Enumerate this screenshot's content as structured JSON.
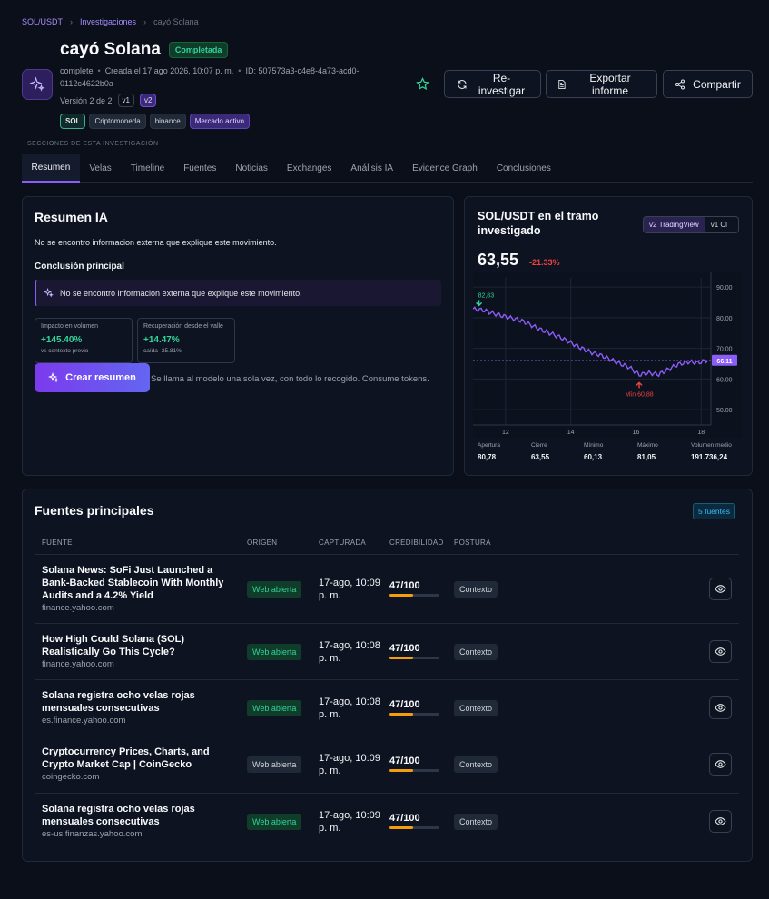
{
  "breadcrumb": {
    "root": "SOL/USDT",
    "section": "Investigaciones",
    "current": "cayó Solana"
  },
  "header": {
    "title": "cayó Solana",
    "status": "Completada",
    "meta_state": "complete",
    "meta_created": "Creada el 17 ago 2026, 10:07 p. m.",
    "meta_id": "ID: 507573a3-c4e8-4a73-acd0-0112c4622b0a",
    "version_label": "Versión 2 de 2",
    "versions": [
      "v1",
      "v2"
    ],
    "tags": [
      "SOL",
      "Criptomoneda",
      "binance",
      "Mercado activo"
    ],
    "actions": {
      "reinvestigate": "Re-investigar",
      "export": "Exportar informe",
      "share": "Compartir"
    }
  },
  "sections_label": "SECCIONES DE ESTA INVESTIGACIÓN",
  "tabs": [
    "Resumen",
    "Velas",
    "Timeline",
    "Fuentes",
    "Noticias",
    "Exchanges",
    "Análisis IA",
    "Evidence Graph",
    "Conclusiones"
  ],
  "summary": {
    "title": "Resumen IA",
    "text": "No se encontro informacion externa que explique este movimiento.",
    "conclusion_label": "Conclusión principal",
    "conclusion": "No se encontro informacion externa que explique este movimiento.",
    "stats": [
      {
        "label": "Impacto en volumen",
        "value": "+145.40%",
        "sub": "vs contexto previo"
      },
      {
        "label": "Recuperación desde el valle",
        "value": "+14.47%",
        "sub": "caída -25.81%"
      }
    ],
    "create_button": "Crear resumen",
    "create_note": "Se llama al modelo una sola vez, con todo lo recogido. Consume tokens."
  },
  "chart_panel": {
    "title": "SOL/USDT en el tramo investigado",
    "toggle": [
      {
        "tag": "v2",
        "label": "TradingView"
      },
      {
        "tag": "v1",
        "label": "Cl"
      }
    ],
    "price": "63,55",
    "change": "-21.33%",
    "stats": [
      {
        "label": "Apertura",
        "value": "80,78"
      },
      {
        "label": "Cierre",
        "value": "63,55"
      },
      {
        "label": "Mínimo",
        "value": "60,13"
      },
      {
        "label": "Máximo",
        "value": "81,05"
      },
      {
        "label": "Volumen medio",
        "value": "191.736,24"
      }
    ]
  },
  "chart_data": {
    "type": "line",
    "x_ticks": [
      "12",
      "14",
      "16",
      "18"
    ],
    "y_ticks": [
      "90.00",
      "80.00",
      "70.00",
      "60.00",
      "50.00"
    ],
    "ylim": [
      45,
      93
    ],
    "xlim": [
      11,
      18.3
    ],
    "max_marker": {
      "x": 11.1,
      "y": 82.83,
      "label": "82,83"
    },
    "min_marker": {
      "x": 16.1,
      "y": 60.88,
      "label": "Mín 60,88"
    },
    "last_value": {
      "y": 66.11,
      "label": "66.11"
    },
    "points": [
      [
        11,
        82.8
      ],
      [
        11.3,
        82.5
      ],
      [
        11.6,
        81.5
      ],
      [
        11.9,
        80.6
      ],
      [
        12.2,
        79.8
      ],
      [
        12.5,
        79.0
      ],
      [
        12.8,
        77.5
      ],
      [
        13.1,
        76.0
      ],
      [
        13.4,
        74.8
      ],
      [
        13.7,
        73.5
      ],
      [
        14.0,
        71.8
      ],
      [
        14.3,
        70.2
      ],
      [
        14.6,
        68.8
      ],
      [
        14.9,
        67.8
      ],
      [
        15.2,
        66.5
      ],
      [
        15.5,
        65.0
      ],
      [
        15.8,
        63.8
      ],
      [
        16.1,
        61.4
      ],
      [
        16.4,
        62.0
      ],
      [
        16.7,
        61.5
      ],
      [
        17.0,
        63.2
      ],
      [
        17.3,
        64.8
      ],
      [
        17.6,
        65.6
      ],
      [
        17.9,
        65.3
      ],
      [
        18.2,
        66.1
      ]
    ]
  },
  "sources": {
    "title": "Fuentes principales",
    "count": "5 fuentes",
    "columns": [
      "FUENTE",
      "ORIGEN",
      "CAPTURADA",
      "CREDIBILIDAD",
      "POSTURA"
    ],
    "rows": [
      {
        "title": "Solana News: SoFi Just Launched a Bank-Backed Stablecoin With Monthly Audits and a 4.2% Yield",
        "domain": "finance.yahoo.com",
        "origin": "Web abierta",
        "captured": "17-ago, 10:09 p. m.",
        "cred": "47/100",
        "cred_fraction": 0.47,
        "stance": "Contexto"
      },
      {
        "title": "How High Could Solana (SOL) Realistically Go This Cycle?",
        "domain": "finance.yahoo.com",
        "origin": "Web abierta",
        "captured": "17-ago, 10:08 p. m.",
        "cred": "47/100",
        "cred_fraction": 0.47,
        "stance": "Contexto"
      },
      {
        "title": "Solana registra ocho velas rojas mensuales consecutivas",
        "domain": "es.finance.yahoo.com",
        "origin": "Web abierta",
        "captured": "17-ago, 10:08 p. m.",
        "cred": "47/100",
        "cred_fraction": 0.47,
        "stance": "Contexto"
      },
      {
        "title": "Cryptocurrency Prices, Charts, and Crypto Market Cap | CoinGecko",
        "domain": "coingecko.com",
        "origin": "Web abierta",
        "captured": "17-ago, 10:09 p. m.",
        "cred": "47/100",
        "cred_fraction": 0.47,
        "stance": "Contexto"
      },
      {
        "title": "Solana registra ocho velas rojas mensuales consecutivas",
        "domain": "es-us.finanzas.yahoo.com",
        "origin": "Web abierta",
        "captured": "17-ago, 10:09 p. m.",
        "cred": "47/100",
        "cred_fraction": 0.47,
        "stance": "Contexto"
      }
    ]
  },
  "colors": {
    "accent": "#8b5cf6",
    "green": "#34d399",
    "red": "#ef4444",
    "amber": "#f59e0b"
  }
}
